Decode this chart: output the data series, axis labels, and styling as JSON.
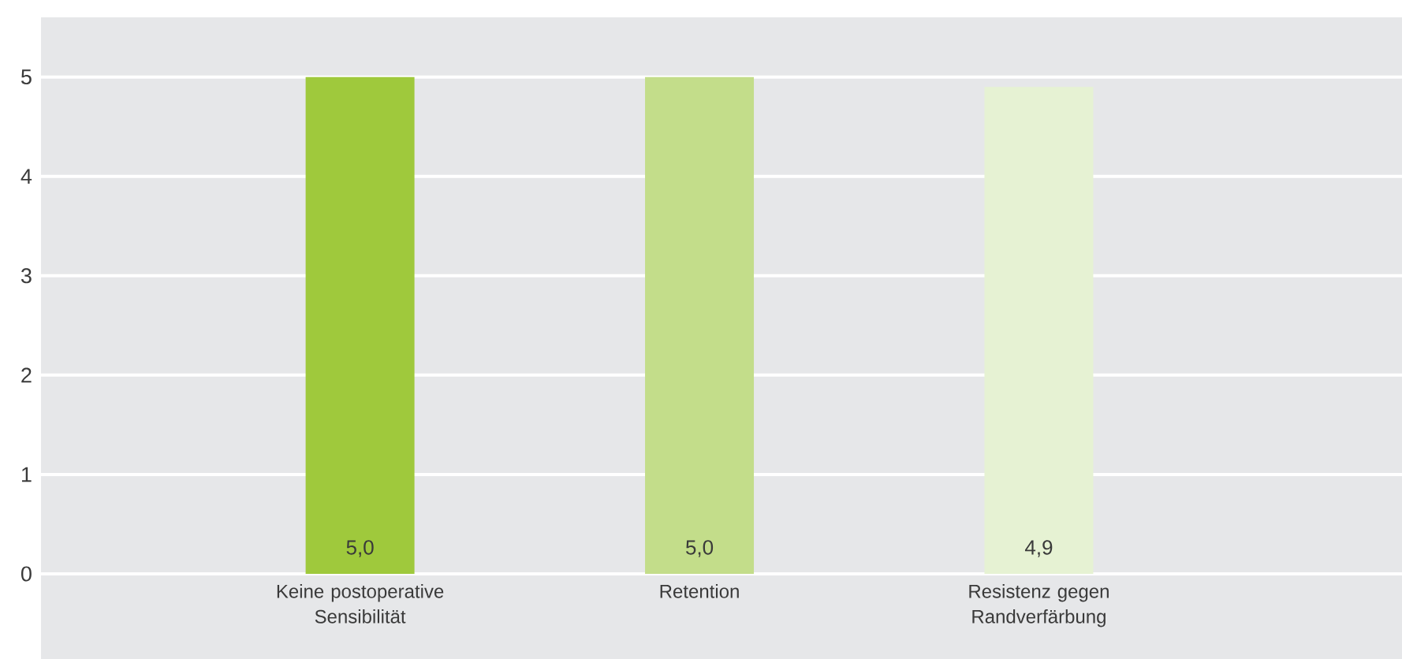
{
  "chart_data": {
    "type": "bar",
    "categories": [
      "Keine postoperative Sensibilität",
      "Retention",
      "Resistenz gegen Randverfärbung"
    ],
    "values": [
      5.0,
      5.0,
      4.9
    ],
    "colors": [
      "#9fc93c",
      "#c3dd8a",
      "#e6f2d3"
    ],
    "value_labels": [
      "5,0",
      "5,0",
      "4,9"
    ],
    "ylim": [
      0,
      5.6
    ],
    "yticks": [
      0,
      1,
      2,
      3,
      4,
      5
    ],
    "grid": "y"
  }
}
